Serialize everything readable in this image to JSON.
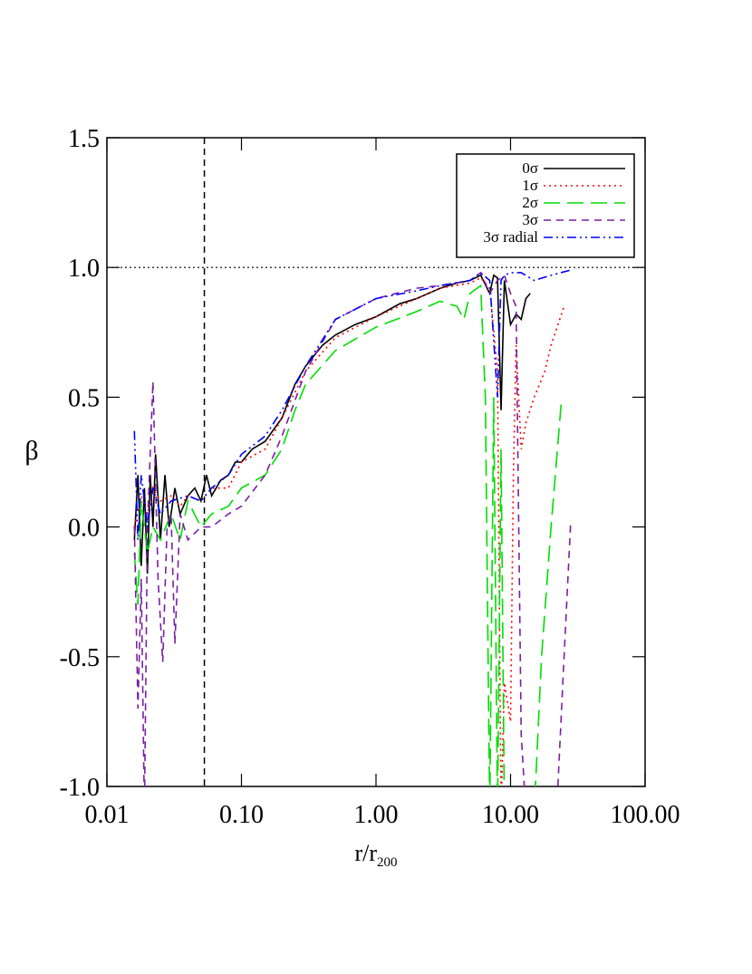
{
  "chart_data": {
    "type": "line",
    "xlabel": "r/r",
    "xlabel_subscript": "200",
    "ylabel": "β",
    "xscale": "log",
    "xlim": [
      0.01,
      100
    ],
    "ylim": [
      -1.0,
      1.5
    ],
    "xticks": [
      {
        "value": 0.01,
        "label": "0.01"
      },
      {
        "value": 0.1,
        "label": "0.10"
      },
      {
        "value": 1,
        "label": "1.00"
      },
      {
        "value": 10,
        "label": "10.00"
      },
      {
        "value": 100,
        "label": "100.00"
      }
    ],
    "yticks": [
      {
        "value": -1.0,
        "label": "-1.0"
      },
      {
        "value": -0.5,
        "label": "-0.5"
      },
      {
        "value": 0.0,
        "label": "0.0"
      },
      {
        "value": 0.5,
        "label": "0.5"
      },
      {
        "value": 1.0,
        "label": "1.0"
      },
      {
        "value": 1.5,
        "label": "1.5"
      }
    ],
    "hlines": [
      1.0
    ],
    "vlines": [
      0.053
    ],
    "legend": "upper right",
    "series": [
      {
        "name": "0σ",
        "color": "#000000",
        "style": "solid",
        "x": [
          0.016,
          0.017,
          0.018,
          0.019,
          0.02,
          0.021,
          0.022,
          0.023,
          0.025,
          0.027,
          0.029,
          0.032,
          0.035,
          0.04,
          0.045,
          0.05,
          0.055,
          0.06,
          0.07,
          0.08,
          0.09,
          0.1,
          0.12,
          0.15,
          0.2,
          0.25,
          0.3,
          0.4,
          0.5,
          0.7,
          1.0,
          1.5,
          2.0,
          3.0,
          4.0,
          5.0,
          6.0,
          7.0,
          7.5,
          8.0,
          8.5,
          9.0,
          10.0,
          11.0,
          12.0,
          13.0,
          14.0
        ],
        "values": [
          -0.05,
          0.2,
          -0.15,
          0.15,
          -0.18,
          0.2,
          0.0,
          0.28,
          -0.05,
          0.2,
          0.0,
          0.15,
          0.05,
          0.12,
          0.15,
          0.1,
          0.2,
          0.12,
          0.18,
          0.2,
          0.25,
          0.25,
          0.3,
          0.33,
          0.42,
          0.55,
          0.62,
          0.7,
          0.74,
          0.78,
          0.81,
          0.86,
          0.88,
          0.92,
          0.94,
          0.95,
          0.97,
          0.9,
          0.97,
          0.96,
          0.45,
          0.95,
          0.78,
          0.82,
          0.8,
          0.88,
          0.9
        ]
      },
      {
        "name": "1σ",
        "color": "#ff0000",
        "style": "dotted",
        "x": [
          0.016,
          0.018,
          0.02,
          0.022,
          0.025,
          0.03,
          0.035,
          0.04,
          0.05,
          0.06,
          0.08,
          0.1,
          0.15,
          0.2,
          0.3,
          0.5,
          1.0,
          2.0,
          3.0,
          5.0,
          6.0,
          7.0,
          8.0,
          8.5,
          9.0,
          10.0,
          10.5,
          11.0,
          12.0,
          13.0,
          15.0,
          18.0,
          20.0,
          25.0
        ],
        "values": [
          0.0,
          0.12,
          0.05,
          0.15,
          0.1,
          0.12,
          0.08,
          0.12,
          0.1,
          0.15,
          0.15,
          0.25,
          0.3,
          0.42,
          0.6,
          0.73,
          0.81,
          0.88,
          0.92,
          0.94,
          0.96,
          0.92,
          0.6,
          -1.1,
          -0.6,
          -0.75,
          0.2,
          0.7,
          0.3,
          0.4,
          0.5,
          0.6,
          0.7,
          0.85
        ]
      },
      {
        "name": "2σ",
        "color": "#00dd00",
        "style": "dashed",
        "x": [
          0.016,
          0.017,
          0.018,
          0.02,
          0.022,
          0.025,
          0.03,
          0.035,
          0.04,
          0.05,
          0.06,
          0.08,
          0.1,
          0.15,
          0.2,
          0.25,
          0.3,
          0.5,
          1.0,
          2.0,
          3.0,
          4.0,
          4.5,
          5.0,
          6.0,
          6.5,
          7.0,
          7.5,
          8.0,
          8.5,
          9.0,
          15.0,
          17.0,
          20.0,
          24.0
        ],
        "values": [
          -0.1,
          -0.3,
          0.1,
          -0.1,
          0.0,
          -0.05,
          0.05,
          -0.05,
          0.1,
          0.0,
          0.05,
          0.08,
          0.15,
          0.2,
          0.3,
          0.45,
          0.55,
          0.68,
          0.77,
          0.83,
          0.87,
          0.85,
          0.8,
          0.9,
          0.93,
          0.5,
          -1.1,
          0.5,
          -1.1,
          0.3,
          -1.1,
          -1.1,
          -0.5,
          0.0,
          0.5
        ]
      },
      {
        "name": "3σ",
        "color": "#7a1fa2",
        "style": "short-dashed",
        "x": [
          0.016,
          0.017,
          0.018,
          0.019,
          0.02,
          0.022,
          0.024,
          0.026,
          0.028,
          0.03,
          0.032,
          0.035,
          0.04,
          0.05,
          0.06,
          0.08,
          0.1,
          0.15,
          0.2,
          0.3,
          0.5,
          1.0,
          2.0,
          3.0,
          5.0,
          6.0,
          7.0,
          8.0,
          9.0,
          10.0,
          11.0,
          12.0,
          13.0,
          22.0,
          25.0,
          28.0
        ],
        "values": [
          0.0,
          -0.7,
          -0.2,
          -1.1,
          0.0,
          0.56,
          -0.2,
          -0.52,
          0.0,
          0.05,
          -0.45,
          0.05,
          -0.05,
          0.0,
          0.0,
          0.05,
          0.08,
          0.2,
          0.35,
          0.6,
          0.8,
          0.88,
          0.92,
          0.93,
          0.95,
          0.98,
          0.9,
          0.95,
          0.97,
          0.9,
          0.85,
          -0.8,
          -1.1,
          -1.1,
          -0.5,
          0.02
        ]
      },
      {
        "name": "3σ radial",
        "color": "#0000ff",
        "style": "dash-dot-dot",
        "x": [
          0.016,
          0.017,
          0.018,
          0.02,
          0.022,
          0.025,
          0.03,
          0.04,
          0.05,
          0.06,
          0.08,
          0.1,
          0.15,
          0.2,
          0.3,
          0.5,
          1.0,
          2.0,
          3.0,
          5.0,
          6.0,
          7.0,
          8.0,
          8.5,
          9.0,
          10.0,
          12.0,
          15.0,
          20.0,
          28.0
        ],
        "values": [
          0.37,
          -0.05,
          0.2,
          0.0,
          0.15,
          0.05,
          0.1,
          0.12,
          0.1,
          0.15,
          0.2,
          0.28,
          0.35,
          0.45,
          0.62,
          0.8,
          0.88,
          0.91,
          0.93,
          0.95,
          0.98,
          0.95,
          0.5,
          0.95,
          0.97,
          0.98,
          0.98,
          0.95,
          0.97,
          0.99
        ]
      }
    ]
  }
}
